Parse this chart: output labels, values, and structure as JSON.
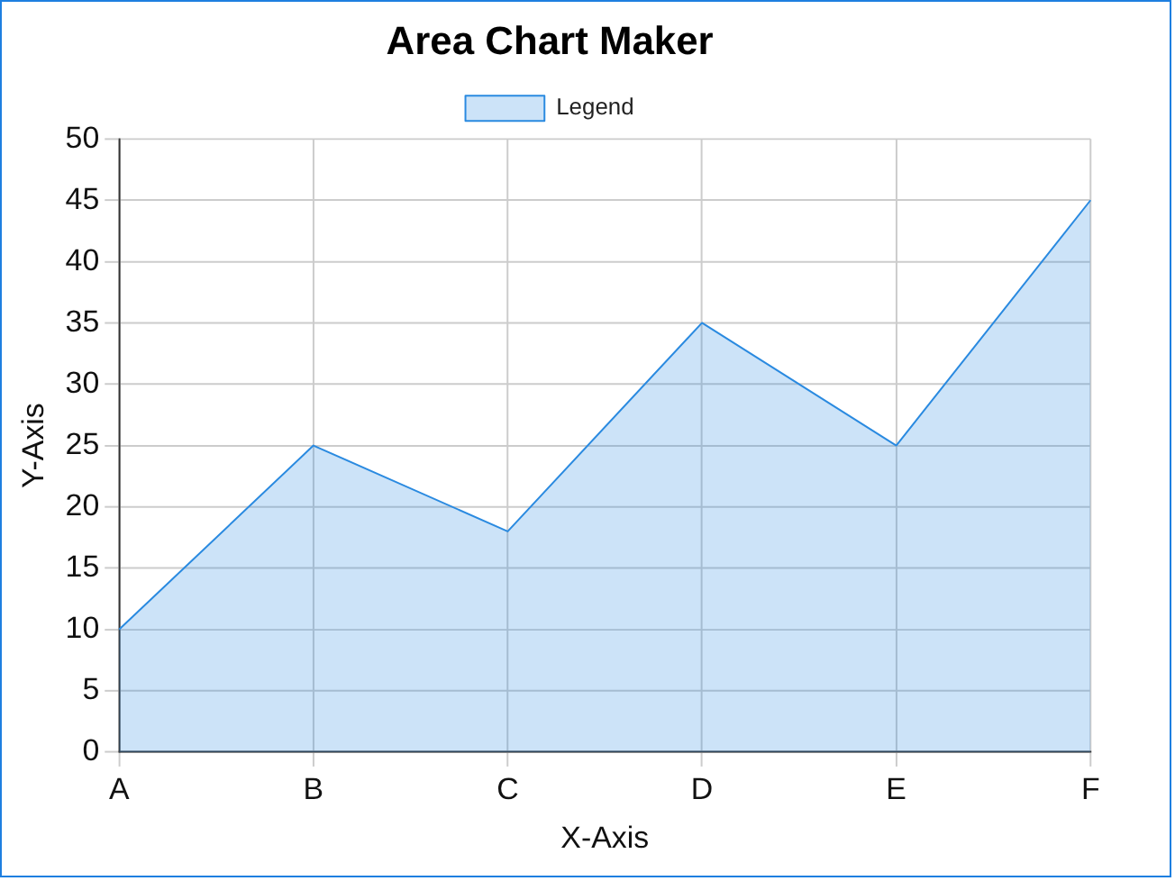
{
  "chart_data": {
    "type": "area",
    "title": "Area Chart Maker",
    "xlabel": "X-Axis",
    "ylabel": "Y-Axis",
    "categories": [
      "A",
      "B",
      "C",
      "D",
      "E",
      "F"
    ],
    "series": [
      {
        "name": "Legend",
        "color": "#2a8ae0",
        "values": [
          10,
          25,
          18,
          35,
          25,
          45
        ]
      }
    ],
    "ylim": [
      0,
      50
    ],
    "yticks": [
      0,
      5,
      10,
      15,
      20,
      25,
      30,
      35,
      40,
      45,
      50
    ],
    "grid": true,
    "legend": "top",
    "marker": "none"
  }
}
